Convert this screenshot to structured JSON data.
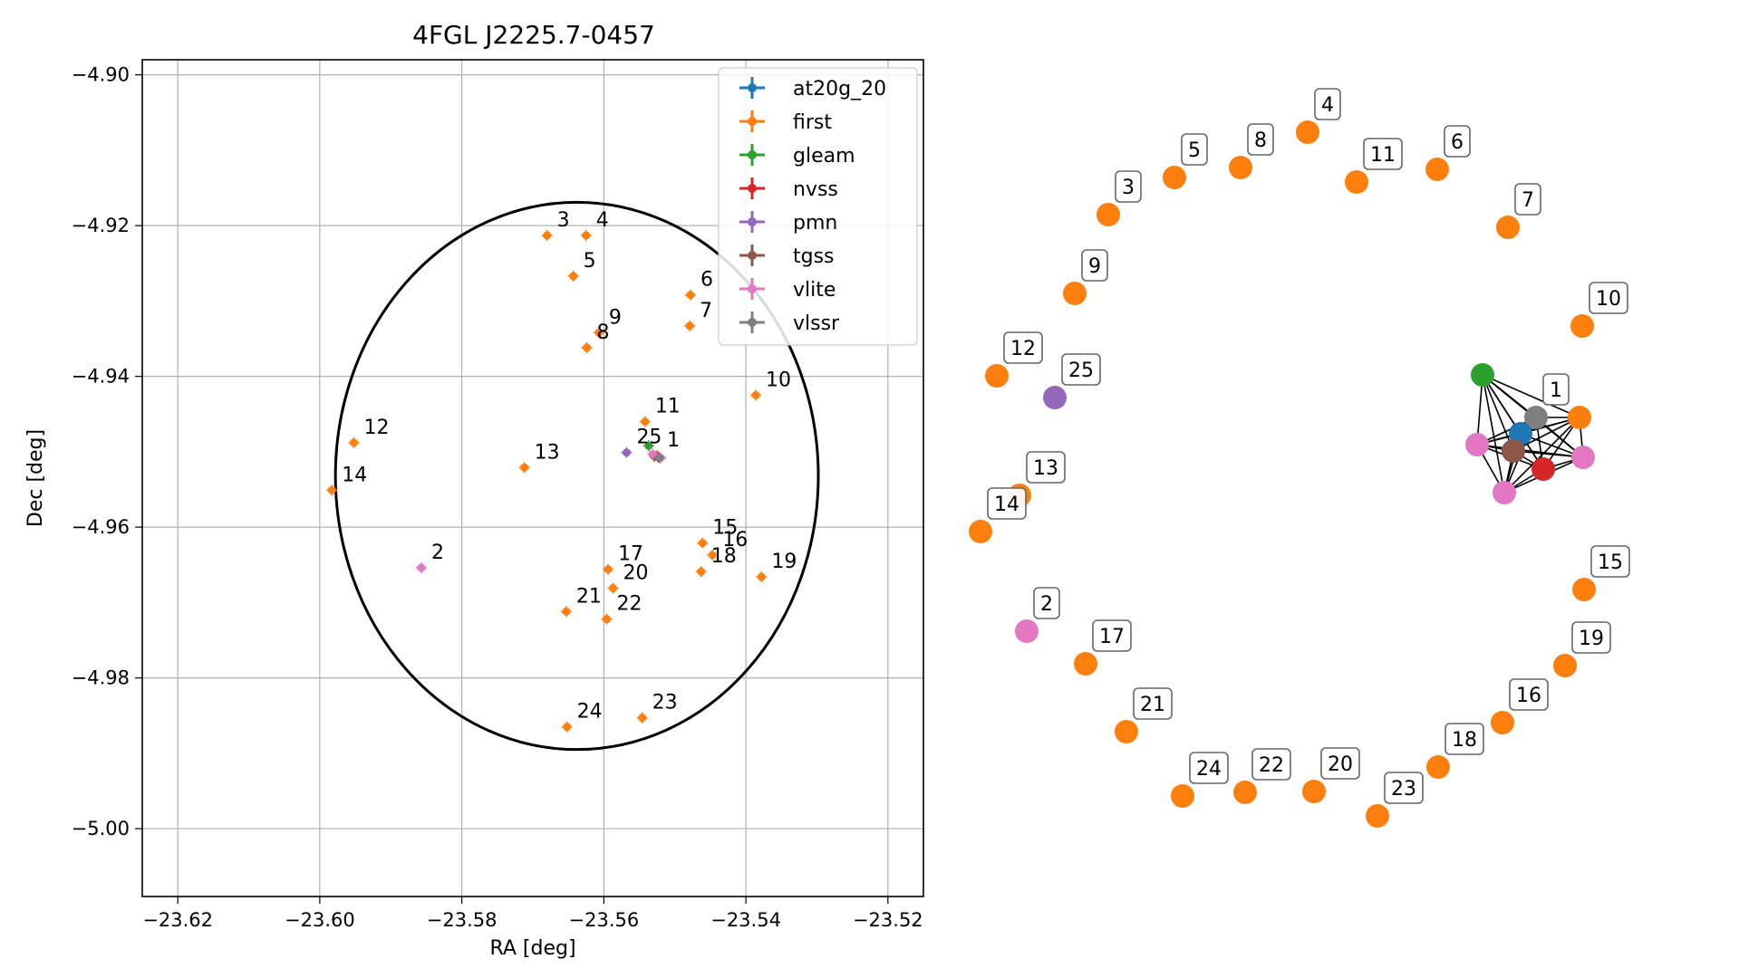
{
  "chart_data": [
    {
      "type": "scatter",
      "title": "4FGL J2225.7-0457",
      "xlabel": "RA [deg]",
      "ylabel": "Dec [deg]",
      "xlim": [
        -23.625,
        -23.515
      ],
      "ylim": [
        -5.009,
        -4.898
      ],
      "xticks": [
        -23.62,
        -23.6,
        -23.58,
        -23.56,
        -23.54,
        -23.52
      ],
      "xtick_labels": [
        "−23.62",
        "−23.60",
        "−23.58",
        "−23.56",
        "−23.54",
        "−23.52"
      ],
      "yticks": [
        -4.9,
        -4.92,
        -4.94,
        -4.96,
        -4.98,
        -5.0
      ],
      "ytick_labels": [
        "−4.90",
        "−4.92",
        "−4.94",
        "−4.96",
        "−4.98",
        "−5.00"
      ],
      "grid": true,
      "legend_position": "top-right",
      "ellipse": {
        "center_ra": -23.5638,
        "center_dec": -4.9532,
        "semi_axis_ra": 0.034,
        "semi_axis_dec": 0.0363
      },
      "series": [
        {
          "name": "at20g_20",
          "color": "#1f77b4",
          "points": [
            {
              "ra": -23.5525,
              "dec": -4.9505,
              "label": ""
            }
          ]
        },
        {
          "name": "first",
          "color": "#ff7f0e",
          "points": [
            {
              "ra": -23.5525,
              "dec": -4.9505,
              "label": "1"
            },
            {
              "ra": -23.568,
              "dec": -4.9213,
              "label": "3"
            },
            {
              "ra": -23.5625,
              "dec": -4.9213,
              "label": "4"
            },
            {
              "ra": -23.5643,
              "dec": -4.9267,
              "label": "5"
            },
            {
              "ra": -23.5478,
              "dec": -4.9292,
              "label": "6"
            },
            {
              "ra": -23.5479,
              "dec": -4.9333,
              "label": "7"
            },
            {
              "ra": -23.5624,
              "dec": -4.9362,
              "label": "8"
            },
            {
              "ra": -23.5607,
              "dec": -4.9342,
              "label": "9"
            },
            {
              "ra": -23.5386,
              "dec": -4.9425,
              "label": "10"
            },
            {
              "ra": -23.5542,
              "dec": -4.946,
              "label": "11"
            },
            {
              "ra": -23.5952,
              "dec": -4.9488,
              "label": "12"
            },
            {
              "ra": -23.5712,
              "dec": -4.9521,
              "label": "13"
            },
            {
              "ra": -23.5983,
              "dec": -4.9551,
              "label": "14"
            },
            {
              "ra": -23.5461,
              "dec": -4.9621,
              "label": "15"
            },
            {
              "ra": -23.5447,
              "dec": -4.9637,
              "label": "16"
            },
            {
              "ra": -23.5594,
              "dec": -4.9656,
              "label": "17"
            },
            {
              "ra": -23.5463,
              "dec": -4.9659,
              "label": "18"
            },
            {
              "ra": -23.5378,
              "dec": -4.9666,
              "label": "19"
            },
            {
              "ra": -23.5587,
              "dec": -4.9681,
              "label": "20"
            },
            {
              "ra": -23.5653,
              "dec": -4.9712,
              "label": "21"
            },
            {
              "ra": -23.5596,
              "dec": -4.9722,
              "label": "22"
            },
            {
              "ra": -23.5546,
              "dec": -4.9853,
              "label": "23"
            },
            {
              "ra": -23.5652,
              "dec": -4.9865,
              "label": "24"
            }
          ]
        },
        {
          "name": "gleam",
          "color": "#2ca02c",
          "points": [
            {
              "ra": -23.5537,
              "dec": -4.9492,
              "label": ""
            }
          ]
        },
        {
          "name": "nvss",
          "color": "#d62728",
          "points": [
            {
              "ra": -23.5524,
              "dec": -4.9507,
              "label": ""
            }
          ]
        },
        {
          "name": "pmn",
          "color": "#9467bd",
          "points": [
            {
              "ra": -23.5568,
              "dec": -4.9501,
              "label": "25"
            }
          ]
        },
        {
          "name": "tgss",
          "color": "#8c564b",
          "points": [
            {
              "ra": -23.5529,
              "dec": -4.9506,
              "label": ""
            }
          ]
        },
        {
          "name": "vlite",
          "color": "#e377c2",
          "points": [
            {
              "ra": -23.5857,
              "dec": -4.9654,
              "label": "2"
            },
            {
              "ra": -23.5531,
              "dec": -4.9503,
              "label": ""
            },
            {
              "ra": -23.552,
              "dec": -4.9508,
              "label": ""
            }
          ]
        },
        {
          "name": "vlssr",
          "color": "#7f7f7f",
          "points": [
            {
              "ra": -23.5522,
              "dec": -4.9508,
              "label": ""
            }
          ]
        }
      ]
    },
    {
      "type": "network",
      "nodes": [
        {
          "label": "1",
          "color": "#7f7f7f",
          "group": "cluster"
        },
        {
          "label": "",
          "color": "#ff7f0e",
          "group": "cluster"
        },
        {
          "label": "",
          "color": "#2ca02c",
          "group": "cluster"
        },
        {
          "label": "",
          "color": "#1f77b4",
          "group": "cluster"
        },
        {
          "label": "",
          "color": "#e377c2",
          "group": "cluster"
        },
        {
          "label": "",
          "color": "#8c564b",
          "group": "cluster"
        },
        {
          "label": "",
          "color": "#d62728",
          "group": "cluster"
        },
        {
          "label": "",
          "color": "#e377c2",
          "group": "cluster"
        },
        {
          "label": "",
          "color": "#e377c2",
          "group": "cluster"
        },
        {
          "label": "2",
          "color": "#e377c2"
        },
        {
          "label": "3",
          "color": "#ff7f0e"
        },
        {
          "label": "4",
          "color": "#ff7f0e"
        },
        {
          "label": "5",
          "color": "#ff7f0e"
        },
        {
          "label": "6",
          "color": "#ff7f0e"
        },
        {
          "label": "7",
          "color": "#ff7f0e"
        },
        {
          "label": "8",
          "color": "#ff7f0e"
        },
        {
          "label": "9",
          "color": "#ff7f0e"
        },
        {
          "label": "10",
          "color": "#ff7f0e"
        },
        {
          "label": "11",
          "color": "#ff7f0e"
        },
        {
          "label": "12",
          "color": "#ff7f0e"
        },
        {
          "label": "13",
          "color": "#ff7f0e"
        },
        {
          "label": "14",
          "color": "#ff7f0e"
        },
        {
          "label": "15",
          "color": "#ff7f0e"
        },
        {
          "label": "16",
          "color": "#ff7f0e"
        },
        {
          "label": "17",
          "color": "#ff7f0e"
        },
        {
          "label": "18",
          "color": "#ff7f0e"
        },
        {
          "label": "19",
          "color": "#ff7f0e"
        },
        {
          "label": "20",
          "color": "#ff7f0e"
        },
        {
          "label": "21",
          "color": "#ff7f0e"
        },
        {
          "label": "22",
          "color": "#ff7f0e"
        },
        {
          "label": "23",
          "color": "#ff7f0e"
        },
        {
          "label": "24",
          "color": "#ff7f0e"
        },
        {
          "label": "25",
          "color": "#9467bd"
        }
      ],
      "edges": "fully connected cluster around node 1"
    }
  ]
}
